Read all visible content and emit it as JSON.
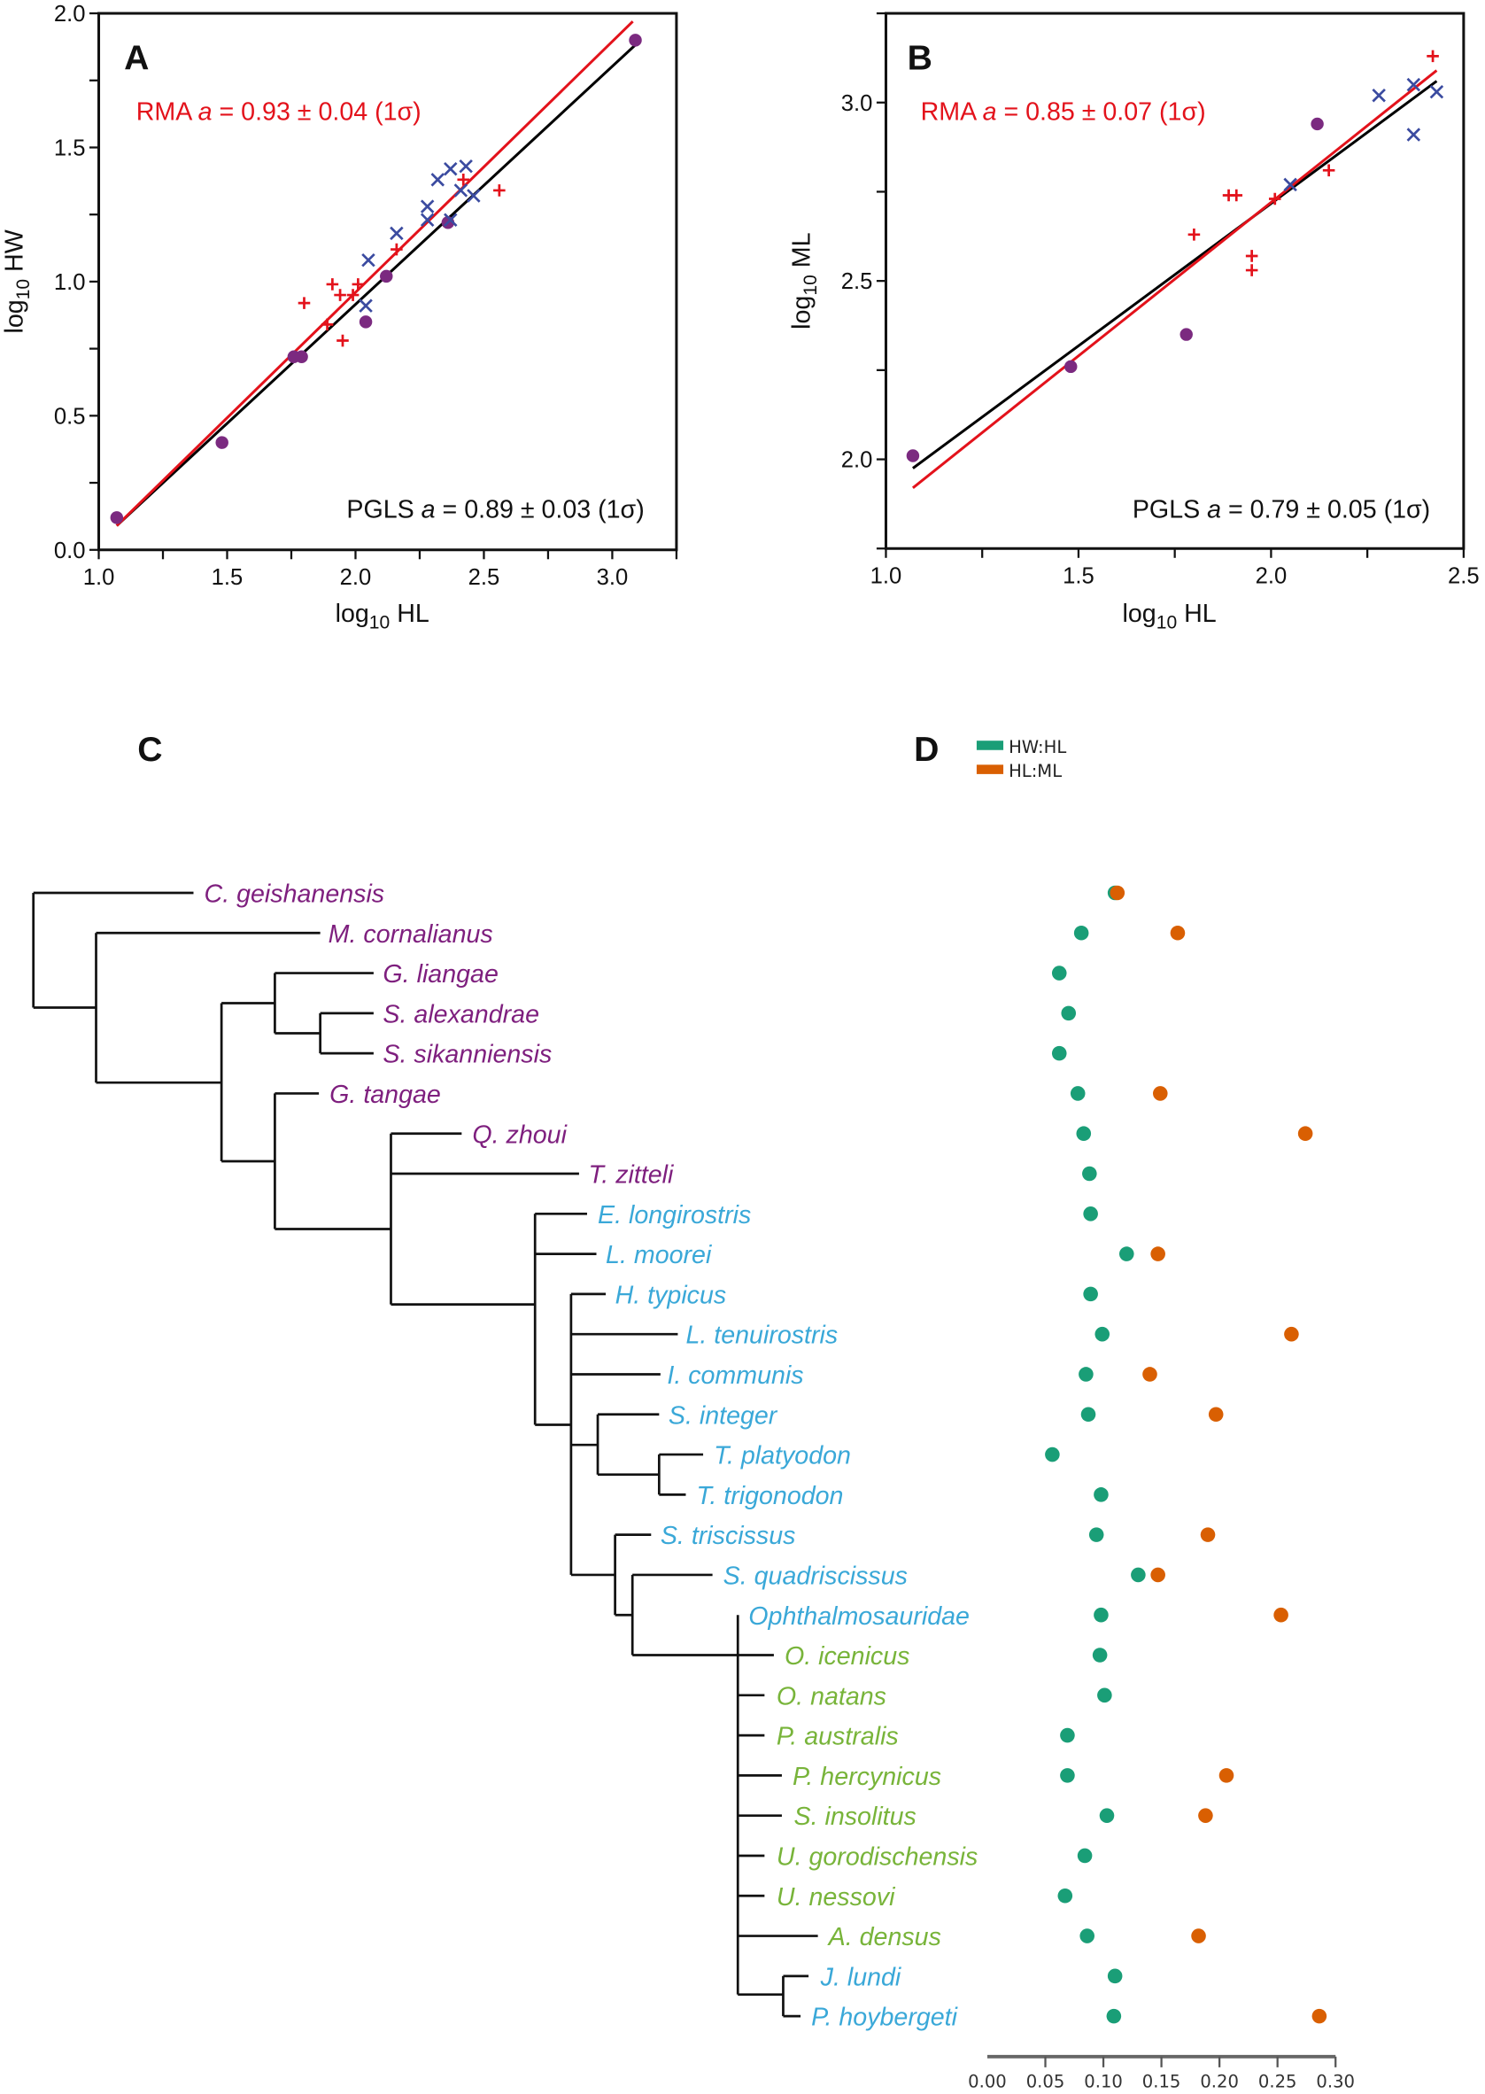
{
  "colors": {
    "pgls_line": "#000000",
    "rma_line": "#e3121b",
    "circle": "#7b2a80",
    "plus": "#e3121b",
    "cross": "#3b4ba0",
    "clade_purple": "#7e1f7e",
    "clade_blue": "#3aa8d8",
    "clade_green": "#78b43a",
    "hw_hl": "#1a9e77",
    "hl_ml": "#d95f02"
  },
  "chart_data": [
    {
      "panel": "A",
      "type": "scatter",
      "xlabel": {
        "pre": "log",
        "sub": "10",
        "post": " HL"
      },
      "ylabel": {
        "pre": "log",
        "sub": "10",
        "post": " HW"
      },
      "xlim": [
        1.0,
        3.25
      ],
      "ylim": [
        0.0,
        2.0
      ],
      "xticks": [
        "1.0",
        "1.5",
        "2.0",
        "2.5",
        "3.0"
      ],
      "yticks": [
        "0.0",
        "0.5",
        "1.0",
        "1.5",
        "2.0"
      ],
      "minor_step": 0.25,
      "rma": {
        "method": "RMA",
        "var": "a",
        "rest": " = 0.93 ± 0.04 (1σ)"
      },
      "pgls": {
        "method": "PGLS",
        "var": "a",
        "rest": " = 0.89 ± 0.03 (1σ)"
      },
      "rma_line": [
        [
          1.07,
          0.09
        ],
        [
          3.08,
          1.97
        ]
      ],
      "pgls_line": [
        [
          1.07,
          0.09
        ],
        [
          3.11,
          1.9
        ]
      ],
      "series": [
        {
          "name": "circle",
          "points": [
            [
              1.07,
              0.12
            ],
            [
              1.48,
              0.4
            ],
            [
              1.76,
              0.72
            ],
            [
              1.79,
              0.72
            ],
            [
              2.04,
              0.85
            ],
            [
              2.12,
              1.02
            ],
            [
              2.36,
              1.22
            ],
            [
              3.09,
              1.9
            ]
          ]
        },
        {
          "name": "plus",
          "points": [
            [
              1.8,
              0.92
            ],
            [
              1.91,
              0.99
            ],
            [
              1.94,
              0.95
            ],
            [
              1.99,
              0.95
            ],
            [
              2.01,
              0.99
            ],
            [
              1.89,
              0.84
            ],
            [
              1.95,
              0.78
            ],
            [
              2.16,
              1.12
            ],
            [
              2.42,
              1.38
            ],
            [
              2.56,
              1.34
            ]
          ]
        },
        {
          "name": "cross",
          "points": [
            [
              2.04,
              0.91
            ],
            [
              2.05,
              1.08
            ],
            [
              2.16,
              1.18
            ],
            [
              2.28,
              1.28
            ],
            [
              2.28,
              1.23
            ],
            [
              2.32,
              1.38
            ],
            [
              2.37,
              1.42
            ],
            [
              2.37,
              1.23
            ],
            [
              2.41,
              1.34
            ],
            [
              2.43,
              1.43
            ],
            [
              2.46,
              1.32
            ]
          ]
        }
      ]
    },
    {
      "panel": "B",
      "type": "scatter",
      "xlabel": {
        "pre": "log",
        "sub": "10",
        "post": " HL"
      },
      "ylabel": {
        "pre": "log",
        "sub": "10",
        "post": " ML"
      },
      "xlim": [
        1.0,
        2.5
      ],
      "ylim": [
        1.75,
        3.25
      ],
      "xticks": [
        "1.0",
        "1.5",
        "2.0",
        "2.5"
      ],
      "yticks": [
        "2.0",
        "2.5",
        "3.0"
      ],
      "minor_step": 0.25,
      "rma": {
        "method": "RMA",
        "var": "a",
        "rest": " = 0.85 ± 0.07 (1σ)"
      },
      "pgls": {
        "method": "PGLS",
        "var": "a",
        "rest": " = 0.79 ± 0.05 (1σ)"
      },
      "rma_line": [
        [
          1.07,
          1.92
        ],
        [
          2.43,
          3.09
        ]
      ],
      "pgls_line": [
        [
          1.07,
          1.975
        ],
        [
          2.43,
          3.06
        ]
      ],
      "series": [
        {
          "name": "circle",
          "points": [
            [
              1.07,
              2.01
            ],
            [
              1.48,
              2.26
            ],
            [
              1.78,
              2.35
            ],
            [
              2.12,
              2.94
            ]
          ]
        },
        {
          "name": "plus",
          "points": [
            [
              1.8,
              2.63
            ],
            [
              1.89,
              2.74
            ],
            [
              1.91,
              2.74
            ],
            [
              1.95,
              2.57
            ],
            [
              1.95,
              2.53
            ],
            [
              2.01,
              2.73
            ],
            [
              2.15,
              2.81
            ],
            [
              2.42,
              3.13
            ]
          ]
        },
        {
          "name": "cross",
          "points": [
            [
              2.05,
              2.77
            ],
            [
              2.28,
              3.02
            ],
            [
              2.37,
              3.05
            ],
            [
              2.37,
              2.91
            ],
            [
              2.43,
              3.03
            ]
          ]
        }
      ]
    },
    {
      "panel": "D",
      "type": "scatter",
      "legend": [
        {
          "key": "hw_hl",
          "label": "HW:HL"
        },
        {
          "key": "hl_ml",
          "label": "HL:ML"
        }
      ],
      "legend_placement": "top-left",
      "xlim": [
        0.0,
        0.3
      ],
      "xticks": [
        "0.00",
        "0.05",
        "0.10",
        "0.15",
        "0.20",
        "0.25",
        "0.30"
      ],
      "values": [
        {
          "taxon": "C. geishanensis",
          "hw_hl": 0.11,
          "hl_ml": 0.112
        },
        {
          "taxon": "M. cornalianus",
          "hw_hl": 0.081,
          "hl_ml": 0.164
        },
        {
          "taxon": "G. liangae",
          "hw_hl": 0.062,
          "hl_ml": null
        },
        {
          "taxon": "S. alexandrae",
          "hw_hl": 0.07,
          "hl_ml": null
        },
        {
          "taxon": "S. sikanniensis",
          "hw_hl": 0.062,
          "hl_ml": null
        },
        {
          "taxon": "G. tangae",
          "hw_hl": 0.078,
          "hl_ml": 0.149
        },
        {
          "taxon": "Q. zhoui",
          "hw_hl": 0.083,
          "hl_ml": 0.274
        },
        {
          "taxon": "T. zitteli",
          "hw_hl": 0.088,
          "hl_ml": null
        },
        {
          "taxon": "E. longirostris",
          "hw_hl": 0.089,
          "hl_ml": null
        },
        {
          "taxon": "L. moorei",
          "hw_hl": 0.12,
          "hl_ml": 0.147
        },
        {
          "taxon": "H. typicus",
          "hw_hl": 0.089,
          "hl_ml": null
        },
        {
          "taxon": "L. tenuirostris",
          "hw_hl": 0.099,
          "hl_ml": 0.262
        },
        {
          "taxon": "I. communis",
          "hw_hl": 0.085,
          "hl_ml": 0.14
        },
        {
          "taxon": "S. integer",
          "hw_hl": 0.087,
          "hl_ml": 0.197
        },
        {
          "taxon": "T. platyodon",
          "hw_hl": 0.056,
          "hl_ml": null
        },
        {
          "taxon": "T. trigonodon",
          "hw_hl": 0.098,
          "hl_ml": null
        },
        {
          "taxon": "S. triscissus",
          "hw_hl": 0.094,
          "hl_ml": 0.19
        },
        {
          "taxon": "S. quadriscissus",
          "hw_hl": 0.13,
          "hl_ml": 0.147
        },
        {
          "taxon": "Ophthalmosauridae",
          "hw_hl": 0.098,
          "hl_ml": 0.253
        },
        {
          "taxon": "O. icenicus",
          "hw_hl": 0.097,
          "hl_ml": null
        },
        {
          "taxon": "O. natans",
          "hw_hl": 0.101,
          "hl_ml": null
        },
        {
          "taxon": "P. australis",
          "hw_hl": 0.069,
          "hl_ml": null
        },
        {
          "taxon": "P. hercynicus",
          "hw_hl": 0.069,
          "hl_ml": 0.206
        },
        {
          "taxon": "S. insolitus",
          "hw_hl": 0.103,
          "hl_ml": 0.188
        },
        {
          "taxon": "U. gorodischensis",
          "hw_hl": 0.084,
          "hl_ml": null
        },
        {
          "taxon": "U. nessovi",
          "hw_hl": 0.067,
          "hl_ml": null
        },
        {
          "taxon": "A. densus",
          "hw_hl": 0.086,
          "hl_ml": 0.182
        },
        {
          "taxon": "J. lundi",
          "hw_hl": 0.11,
          "hl_ml": null
        },
        {
          "taxon": "P. hoybergeti",
          "hw_hl": 0.109,
          "hl_ml": 0.286
        }
      ]
    }
  ],
  "tree": {
    "panel": "C",
    "leaves": [
      {
        "name": "C. geishanensis",
        "clade": "clade_purple"
      },
      {
        "name": "M. cornalianus",
        "clade": "clade_purple"
      },
      {
        "name": "G. liangae",
        "clade": "clade_purple"
      },
      {
        "name": "S. alexandrae",
        "clade": "clade_purple"
      },
      {
        "name": "S. sikanniensis",
        "clade": "clade_purple"
      },
      {
        "name": "G. tangae",
        "clade": "clade_purple"
      },
      {
        "name": "Q. zhoui",
        "clade": "clade_purple"
      },
      {
        "name": "T. zitteli",
        "clade": "clade_purple"
      },
      {
        "name": "E. longirostris",
        "clade": "clade_blue"
      },
      {
        "name": "L. moorei",
        "clade": "clade_blue"
      },
      {
        "name": "H. typicus",
        "clade": "clade_blue"
      },
      {
        "name": "L. tenuirostris",
        "clade": "clade_blue"
      },
      {
        "name": "I. communis",
        "clade": "clade_blue"
      },
      {
        "name": "S. integer",
        "clade": "clade_blue"
      },
      {
        "name": "T. platyodon",
        "clade": "clade_blue"
      },
      {
        "name": "T. trigonodon",
        "clade": "clade_blue"
      },
      {
        "name": "S. triscissus",
        "clade": "clade_blue"
      },
      {
        "name": "S. quadriscissus",
        "clade": "clade_blue"
      },
      {
        "name": "Ophthalmosauridae",
        "clade": "clade_blue",
        "italic": false
      },
      {
        "name": "O. icenicus",
        "clade": "clade_green"
      },
      {
        "name": "O. natans",
        "clade": "clade_green"
      },
      {
        "name": "P. australis",
        "clade": "clade_green"
      },
      {
        "name": "P. hercynicus",
        "clade": "clade_green"
      },
      {
        "name": "S. insolitus",
        "clade": "clade_green"
      },
      {
        "name": "U. gorodischensis",
        "clade": "clade_green"
      },
      {
        "name": "U. nessovi",
        "clade": "clade_green"
      },
      {
        "name": "A. densus",
        "clade": "clade_green"
      },
      {
        "name": "J. lundi",
        "clade": "clade_blue"
      },
      {
        "name": "P. hoybergeti",
        "clade": "clade_blue"
      }
    ]
  }
}
